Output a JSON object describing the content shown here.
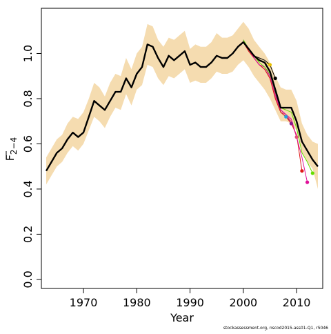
{
  "chart_data": {
    "type": "line",
    "title": "",
    "xlabel": "Year",
    "ylabel_main": "F",
    "ylabel_sub": "2−4",
    "xlim": [
      1962.1,
      2014.9
    ],
    "ylim": [
      -0.04,
      1.2
    ],
    "x_ticks": [
      1970,
      1980,
      1990,
      2000,
      2010
    ],
    "x_tick_labels": [
      "1970",
      "1980",
      "1990",
      "2000",
      "2010"
    ],
    "y_ticks": [
      0.0,
      0.2,
      0.4,
      0.6,
      0.8,
      1.0
    ],
    "y_tick_labels": [
      "0.0",
      "0.2",
      "0.4",
      "0.6",
      "0.8",
      "1.0"
    ],
    "grid": false,
    "legend": "none",
    "credit": "stockassessment.org, nscod2015-ass01-Q1, r5046",
    "colors": {
      "band": "#f5dcb0",
      "final": "#000000",
      "retro": [
        "#e8c000",
        "#000000",
        "#22a0e0",
        "#8b1a8b",
        "#e0507a",
        "#e01818",
        "#e0109a",
        "#66dd00",
        "#a0149a"
      ]
    },
    "band": {
      "years": [
        1963,
        1964,
        1965,
        1966,
        1967,
        1968,
        1969,
        1970,
        1971,
        1972,
        1973,
        1974,
        1975,
        1976,
        1977,
        1978,
        1979,
        1980,
        1981,
        1982,
        1983,
        1984,
        1985,
        1986,
        1987,
        1988,
        1989,
        1990,
        1991,
        1992,
        1993,
        1994,
        1995,
        1996,
        1997,
        1998,
        1999,
        2000,
        2001,
        2002,
        2003,
        2004,
        2005,
        2006,
        2007,
        2008,
        2009,
        2010,
        2011,
        2012,
        2013,
        2014
      ],
      "upper": [
        0.54,
        0.58,
        0.62,
        0.64,
        0.69,
        0.72,
        0.71,
        0.74,
        0.8,
        0.87,
        0.85,
        0.81,
        0.87,
        0.91,
        0.9,
        0.98,
        0.93,
        1.0,
        1.03,
        1.13,
        1.12,
        1.06,
        1.03,
        1.07,
        1.06,
        1.08,
        1.1,
        1.02,
        1.04,
        1.03,
        1.03,
        1.05,
        1.09,
        1.07,
        1.07,
        1.08,
        1.11,
        1.14,
        1.11,
        1.06,
        1.03,
        1.0,
        0.96,
        0.9,
        0.85,
        0.84,
        0.84,
        0.79,
        0.69,
        0.64,
        0.61,
        0.6
      ],
      "lower": [
        0.42,
        0.46,
        0.5,
        0.52,
        0.56,
        0.59,
        0.57,
        0.6,
        0.66,
        0.72,
        0.7,
        0.67,
        0.72,
        0.76,
        0.75,
        0.82,
        0.77,
        0.84,
        0.86,
        0.95,
        0.94,
        0.89,
        0.86,
        0.9,
        0.89,
        0.91,
        0.93,
        0.87,
        0.88,
        0.87,
        0.87,
        0.89,
        0.92,
        0.91,
        0.91,
        0.92,
        0.95,
        0.97,
        0.94,
        0.9,
        0.87,
        0.84,
        0.8,
        0.75,
        0.7,
        0.7,
        0.69,
        0.66,
        0.56,
        0.52,
        0.49,
        0.4
      ]
    },
    "series": [
      {
        "role": "final",
        "x": [
          1963,
          1964,
          1965,
          1966,
          1967,
          1968,
          1969,
          1970,
          1971,
          1972,
          1973,
          1974,
          1975,
          1976,
          1977,
          1978,
          1979,
          1980,
          1981,
          1982,
          1983,
          1984,
          1985,
          1986,
          1987,
          1988,
          1989,
          1990,
          1991,
          1992,
          1993,
          1994,
          1995,
          1996,
          1997,
          1998,
          1999,
          2000,
          2001,
          2002,
          2003,
          2004,
          2005,
          2006,
          2007,
          2008,
          2009,
          2010,
          2011,
          2012,
          2013,
          2014
        ],
        "y": [
          0.48,
          0.52,
          0.56,
          0.58,
          0.62,
          0.65,
          0.63,
          0.65,
          0.72,
          0.79,
          0.77,
          0.75,
          0.79,
          0.83,
          0.83,
          0.89,
          0.85,
          0.91,
          0.94,
          1.04,
          1.03,
          0.98,
          0.94,
          0.99,
          0.97,
          0.99,
          1.01,
          0.95,
          0.96,
          0.94,
          0.94,
          0.96,
          0.99,
          0.98,
          0.98,
          1.0,
          1.03,
          1.05,
          1.02,
          0.99,
          0.97,
          0.96,
          0.92,
          0.84,
          0.76,
          0.76,
          0.76,
          0.7,
          0.61,
          0.57,
          0.53,
          0.5
        ]
      },
      {
        "x": [
          2000,
          2001,
          2002,
          2003,
          2004,
          2005
        ],
        "y": [
          1.05,
          1.02,
          0.99,
          0.97,
          0.96,
          0.95
        ]
      },
      {
        "x": [
          2000,
          2001,
          2002,
          2003,
          2004,
          2005,
          2006
        ],
        "y": [
          1.05,
          1.02,
          0.99,
          0.98,
          0.97,
          0.95,
          0.89
        ]
      },
      {
        "x": [
          2000,
          2001,
          2002,
          2003,
          2004,
          2005,
          2006,
          2007,
          2008
        ],
        "y": [
          1.06,
          1.02,
          0.98,
          0.95,
          0.94,
          0.9,
          0.82,
          0.74,
          0.72
        ]
      },
      {
        "x": [
          2000,
          2001,
          2002,
          2003,
          2004,
          2005,
          2006,
          2007,
          2008,
          2009
        ],
        "y": [
          1.06,
          1.02,
          0.98,
          0.95,
          0.93,
          0.89,
          0.81,
          0.75,
          0.73,
          0.69
        ]
      },
      {
        "x": [
          2000,
          2001,
          2002,
          2003,
          2004,
          2005,
          2006,
          2007,
          2008,
          2009,
          2010
        ],
        "y": [
          1.05,
          1.01,
          0.98,
          0.95,
          0.93,
          0.89,
          0.81,
          0.74,
          0.73,
          0.7,
          0.63
        ]
      },
      {
        "x": [
          2000,
          2001,
          2002,
          2003,
          2004,
          2005,
          2006,
          2007,
          2008,
          2009,
          2010,
          2011
        ],
        "y": [
          1.05,
          1.01,
          0.98,
          0.95,
          0.93,
          0.89,
          0.8,
          0.74,
          0.72,
          0.69,
          0.64,
          0.48
        ]
      },
      {
        "x": [
          2000,
          2001,
          2002,
          2003,
          2004,
          2005,
          2006,
          2007,
          2008,
          2009,
          2010,
          2011,
          2012
        ],
        "y": [
          1.05,
          1.02,
          0.98,
          0.95,
          0.94,
          0.9,
          0.82,
          0.75,
          0.73,
          0.71,
          0.63,
          0.54,
          0.43
        ]
      },
      {
        "x": [
          2000,
          2001,
          2002,
          2003,
          2004,
          2005,
          2006,
          2007,
          2008,
          2009,
          2010,
          2011,
          2012,
          2013
        ],
        "y": [
          1.06,
          1.02,
          0.99,
          0.96,
          0.94,
          0.91,
          0.83,
          0.76,
          0.75,
          0.74,
          0.67,
          0.56,
          0.52,
          0.47
        ]
      }
    ]
  }
}
